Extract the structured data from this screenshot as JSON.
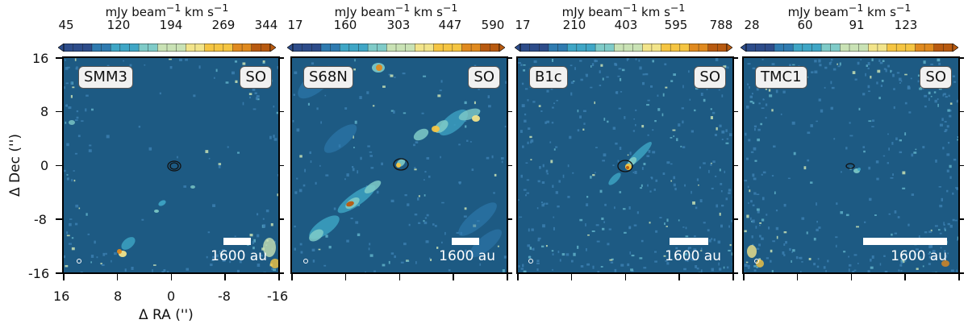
{
  "colorbar_unit_html": "mJy beam<sup>−1</sup> km s<sup>−1</sup>",
  "colorbar_unit": "mJy beam−1 km s−1",
  "axes": {
    "ylabel": "Δ Dec ('')",
    "xlabel": "Δ RA ('')",
    "yticks": [
      "16",
      "8",
      "0",
      "-8",
      "-16"
    ],
    "xticks": [
      "16",
      "8",
      "0",
      "-8",
      "-16"
    ]
  },
  "chart_data": [
    {
      "type": "heatmap",
      "source": "SMM3",
      "molecule": "SO",
      "scale_label": "1600 au",
      "colorbar_ticks": [
        "45",
        "120",
        "194",
        "269",
        "344"
      ],
      "colorbar_range": [
        45,
        344
      ],
      "xlim": [
        16,
        -16
      ],
      "ylim": [
        -16,
        16
      ]
    },
    {
      "type": "heatmap",
      "source": "S68N",
      "molecule": "SO",
      "scale_label": "1600 au",
      "colorbar_ticks": [
        "17",
        "160",
        "303",
        "447",
        "590"
      ],
      "colorbar_range": [
        17,
        590
      ],
      "xlim": [
        16,
        -16
      ],
      "ylim": [
        -16,
        16
      ]
    },
    {
      "type": "heatmap",
      "source": "B1c",
      "molecule": "SO",
      "scale_label": "1600 au",
      "colorbar_ticks": [
        "17",
        "210",
        "403",
        "595",
        "788"
      ],
      "colorbar_range": [
        17,
        788
      ],
      "xlim": [
        16,
        -16
      ],
      "ylim": [
        -16,
        16
      ]
    },
    {
      "type": "heatmap",
      "source": "TMC1",
      "molecule": "SO",
      "scale_label": "1600 au",
      "colorbar_ticks": [
        "28",
        "60",
        "91",
        "123"
      ],
      "colorbar_range": [
        28,
        150
      ],
      "xlim": [
        16,
        -16
      ],
      "ylim": [
        -16,
        16
      ]
    }
  ],
  "colors": {
    "background": "#1d5a83",
    "colormap": [
      "#2d4c8a",
      "#2f7bb0",
      "#3fa6c6",
      "#7fcbc8",
      "#c9e2b5",
      "#f2e48a",
      "#f5c542",
      "#e08a1f",
      "#b85a10"
    ]
  }
}
